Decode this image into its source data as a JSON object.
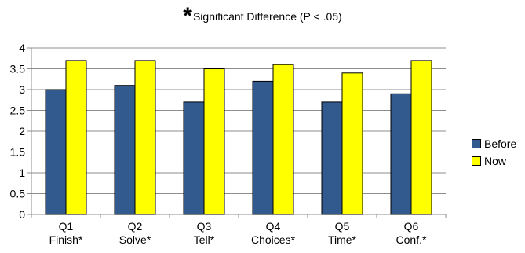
{
  "chart_data": {
    "type": "bar",
    "title_mark": "*",
    "title": "Significant Difference (P < .05)",
    "categories": [
      [
        "Q1",
        "Finish*"
      ],
      [
        "Q2",
        "Solve*"
      ],
      [
        "Q3",
        "Tell*"
      ],
      [
        "Q4",
        "Choices*"
      ],
      [
        "Q5",
        "Time*"
      ],
      [
        "Q6",
        "Conf.*"
      ]
    ],
    "series": [
      {
        "name": "Before",
        "color": "#335a8e",
        "values": [
          3.0,
          3.1,
          2.7,
          3.2,
          2.7,
          2.9
        ]
      },
      {
        "name": "Now",
        "color": "#ffff00",
        "values": [
          3.7,
          3.7,
          3.5,
          3.6,
          3.4,
          3.7
        ]
      }
    ],
    "ylim": [
      0,
      4
    ],
    "yticks": [
      "0",
      "0.5",
      "1",
      "1.5",
      "2",
      "2.5",
      "3",
      "3.5",
      "4"
    ],
    "grid": true,
    "legend_position": "right"
  }
}
